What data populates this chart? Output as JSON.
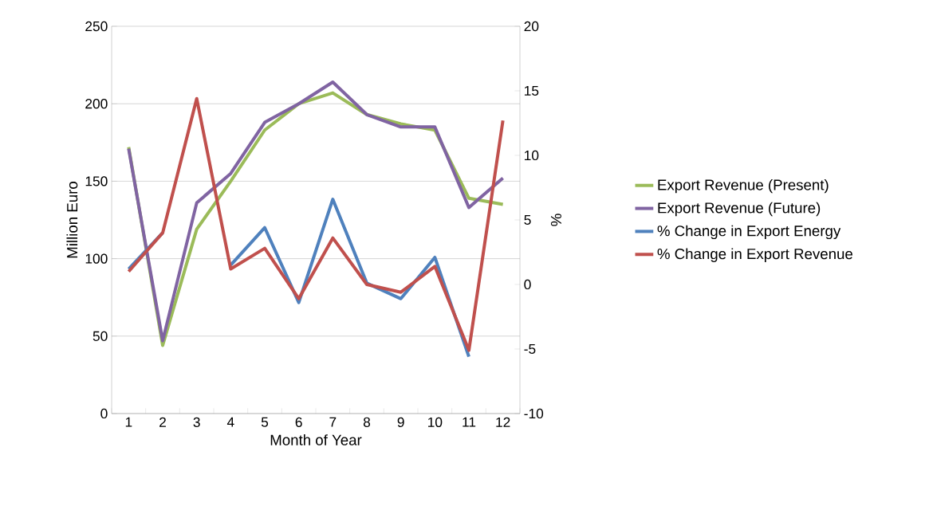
{
  "chart_data": {
    "type": "line",
    "xlabel": "Month of Year",
    "ylabel": "Million Euro",
    "y2label": "%",
    "categories": [
      "1",
      "2",
      "3",
      "4",
      "5",
      "6",
      "7",
      "8",
      "9",
      "10",
      "11",
      "12"
    ],
    "ylim": [
      0,
      250
    ],
    "yticks": [
      0,
      50,
      100,
      150,
      200,
      250
    ],
    "y2lim": [
      -10,
      20
    ],
    "y2ticks": [
      -10,
      -5,
      0,
      5,
      10,
      15,
      20
    ],
    "grid": "y",
    "legend": "right",
    "marker": "none",
    "line_style": "solid",
    "series": [
      {
        "name": "Export Revenue (Present)",
        "color": "#9bbb59",
        "values": [
          172,
          44,
          119,
          150,
          183,
          200,
          207,
          193,
          187,
          183,
          139,
          135
        ]
      },
      {
        "name": "Export Revenue (Future)",
        "color": "#8064a2",
        "values": [
          171,
          47,
          136,
          155,
          188,
          200,
          214,
          193,
          185,
          185,
          133,
          152
        ]
      },
      {
        "name": "% Change in Export Energy",
        "color": "#4f81bd",
        "axis": "y2",
        "values": [
          1.2,
          4.0,
          null,
          1.5,
          4.4,
          -1.4,
          6.6,
          0.1,
          -1.1,
          2.1,
          -5.6,
          null
        ]
      },
      {
        "name": "% Change in Export Revenue",
        "color": "#c0504d",
        "axis": "y2",
        "values": [
          1.0,
          4.0,
          14.4,
          1.2,
          2.8,
          -1.1,
          3.6,
          0.0,
          -0.6,
          1.4,
          -5.1,
          12.7
        ]
      }
    ]
  }
}
